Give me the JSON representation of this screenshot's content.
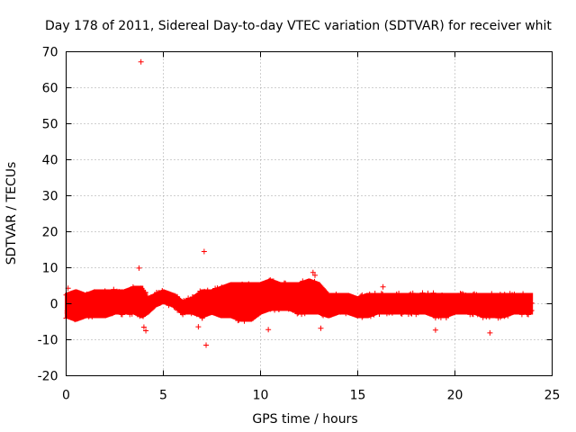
{
  "chart_data": {
    "type": "scatter",
    "title": "Day 178 of 2011, Sidereal Day-to-day VTEC variation (SDTVAR) for receiver whit",
    "xlabel": "GPS time / hours",
    "ylabel": "SDTVAR / TECUs",
    "xlim": [
      0,
      25
    ],
    "ylim": [
      -20,
      70
    ],
    "xticks": [
      "0",
      "5",
      "10",
      "15",
      "20",
      "25"
    ],
    "yticks": [
      "-20",
      "-10",
      "0",
      "10",
      "20",
      "30",
      "40",
      "50",
      "60",
      "70"
    ],
    "grid": true,
    "legend": "none",
    "marker": "+",
    "color": "#ff0000",
    "series": [
      {
        "band": [
          [
            0.0,
            -4,
            3
          ],
          [
            0.5,
            -5,
            4
          ],
          [
            1.0,
            -4,
            3
          ],
          [
            1.5,
            -4,
            4
          ],
          [
            2.0,
            -4,
            4
          ],
          [
            2.5,
            -3,
            4
          ],
          [
            3.0,
            -3,
            4
          ],
          [
            3.5,
            -3,
            5
          ],
          [
            3.9,
            -4,
            5
          ],
          [
            4.2,
            -3,
            2
          ],
          [
            4.6,
            -1,
            3
          ],
          [
            5.0,
            0,
            4
          ],
          [
            5.5,
            -1,
            3
          ],
          [
            6.0,
            -3,
            1
          ],
          [
            6.5,
            -3,
            2
          ],
          [
            7.0,
            -4,
            4
          ],
          [
            7.5,
            -3,
            4
          ],
          [
            8.0,
            -4,
            5
          ],
          [
            8.5,
            -4,
            6
          ],
          [
            9.0,
            -5,
            6
          ],
          [
            9.5,
            -5,
            6
          ],
          [
            10.0,
            -3,
            6
          ],
          [
            10.5,
            -2,
            7
          ],
          [
            11.0,
            -2,
            6
          ],
          [
            11.5,
            -2,
            6
          ],
          [
            12.0,
            -3,
            6
          ],
          [
            12.5,
            -3,
            7
          ],
          [
            13.0,
            -3,
            6
          ],
          [
            13.5,
            -4,
            3
          ],
          [
            14.0,
            -3,
            3
          ],
          [
            14.5,
            -3,
            3
          ],
          [
            15.0,
            -4,
            2
          ],
          [
            15.5,
            -4,
            3
          ],
          [
            16.0,
            -3,
            3
          ],
          [
            16.5,
            -3,
            3
          ],
          [
            17.0,
            -3,
            3
          ],
          [
            17.5,
            -3,
            3
          ],
          [
            18.0,
            -3,
            3
          ],
          [
            18.5,
            -3,
            3
          ],
          [
            19.0,
            -4,
            3
          ],
          [
            19.5,
            -4,
            3
          ],
          [
            20.0,
            -3,
            3
          ],
          [
            20.5,
            -3,
            3
          ],
          [
            21.0,
            -3,
            3
          ],
          [
            21.5,
            -4,
            3
          ],
          [
            22.0,
            -4,
            3
          ],
          [
            22.5,
            -4,
            3
          ],
          [
            23.0,
            -3,
            3
          ],
          [
            23.5,
            -3,
            3
          ],
          [
            24.0,
            -3,
            3
          ]
        ],
        "outliers": [
          [
            3.85,
            67.2
          ],
          [
            3.75,
            9.9
          ],
          [
            7.1,
            14.5
          ],
          [
            7.2,
            -11.5
          ],
          [
            4.1,
            -7.5
          ],
          [
            4.0,
            -6.5
          ],
          [
            10.4,
            -7.2
          ],
          [
            13.1,
            -6.8
          ],
          [
            12.7,
            8.7
          ],
          [
            12.8,
            7.9
          ],
          [
            16.3,
            4.7
          ],
          [
            19.0,
            -7.3
          ],
          [
            21.8,
            -8.1
          ],
          [
            6.8,
            -6.4
          ],
          [
            0.1,
            4.3
          ]
        ]
      }
    ]
  }
}
